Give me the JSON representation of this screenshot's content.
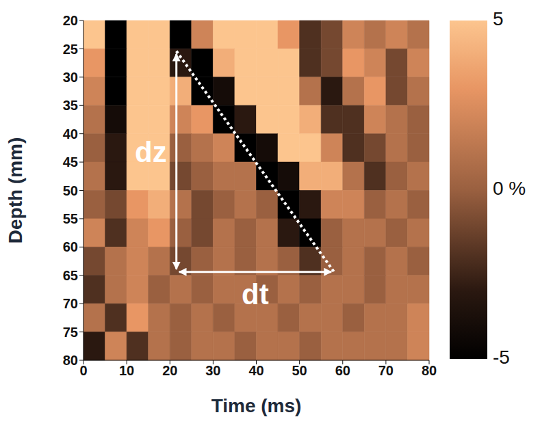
{
  "chart_data": {
    "type": "heatmap",
    "xlabel": "Time (ms)",
    "ylabel": "Depth (mm)",
    "xlim": [
      0,
      80
    ],
    "ylim": [
      20,
      80
    ],
    "xticks": [
      0,
      10,
      20,
      30,
      40,
      50,
      60,
      70,
      80
    ],
    "yticks": [
      20,
      25,
      30,
      35,
      40,
      45,
      50,
      55,
      60,
      65,
      70,
      75,
      80
    ],
    "x_bins": [
      0,
      5,
      10,
      15,
      20,
      25,
      30,
      35,
      40,
      45,
      50,
      55,
      60,
      65,
      70,
      75,
      80
    ],
    "y_bins": [
      20,
      25,
      30,
      35,
      40,
      45,
      50,
      55,
      60,
      65,
      70,
      75,
      80
    ],
    "cells": [
      [
        5,
        -5,
        5,
        5,
        -5,
        2,
        5,
        5,
        5,
        3,
        -2,
        -1,
        2,
        1,
        2,
        1
      ],
      [
        3,
        -5,
        5,
        5,
        -3,
        -5,
        4,
        5,
        5,
        5,
        -2,
        -1,
        3,
        2,
        -1,
        2
      ],
      [
        2,
        -5,
        5,
        5,
        4,
        -5,
        -4,
        5,
        5,
        5,
        1,
        -3,
        1,
        3,
        -1,
        1
      ],
      [
        1,
        -4,
        5,
        5,
        2,
        3,
        -5,
        -3,
        5,
        5,
        4,
        -2,
        -2,
        2,
        1,
        0
      ],
      [
        0,
        -3,
        5,
        5,
        0,
        1,
        2,
        -5,
        -4,
        5,
        5,
        2,
        -2,
        -1,
        1,
        0
      ],
      [
        1,
        -3,
        5,
        5,
        -1,
        0,
        1,
        1,
        -5,
        -4,
        4,
        4,
        1,
        -2,
        0,
        1
      ],
      [
        0,
        -1,
        3,
        4,
        1,
        -1,
        0,
        1,
        0,
        -5,
        -3,
        2,
        2,
        0,
        1,
        0
      ],
      [
        2,
        -2,
        2,
        3,
        0,
        -1,
        1,
        0,
        1,
        -3,
        -5,
        0,
        1,
        1,
        0,
        1
      ],
      [
        -1,
        1,
        2,
        1,
        -1,
        0,
        1,
        0,
        1,
        0,
        -2,
        0,
        1,
        0,
        1,
        0
      ],
      [
        -2,
        1,
        2,
        0,
        1,
        0,
        1,
        1,
        0,
        1,
        0,
        1,
        1,
        0,
        1,
        1
      ],
      [
        1,
        -2,
        3,
        1,
        0,
        1,
        0,
        1,
        1,
        0,
        1,
        1,
        0,
        1,
        1,
        2
      ],
      [
        -3,
        2,
        -2,
        1,
        0,
        1,
        1,
        0,
        1,
        1,
        0,
        1,
        1,
        1,
        1,
        2
      ]
    ],
    "colorbar": {
      "range": [
        -5,
        5
      ],
      "ticks": [
        5,
        {
          "value": 0,
          "label": "0 %"
        },
        -5
      ]
    },
    "annotations": [
      {
        "text": "dz",
        "x": [
          21.5,
          21.5
        ],
        "y": [
          25.4,
          64.4
        ]
      },
      {
        "text": "dt",
        "x": [
          21.5,
          58
        ],
        "y": [
          64.4,
          64.4
        ]
      }
    ]
  }
}
